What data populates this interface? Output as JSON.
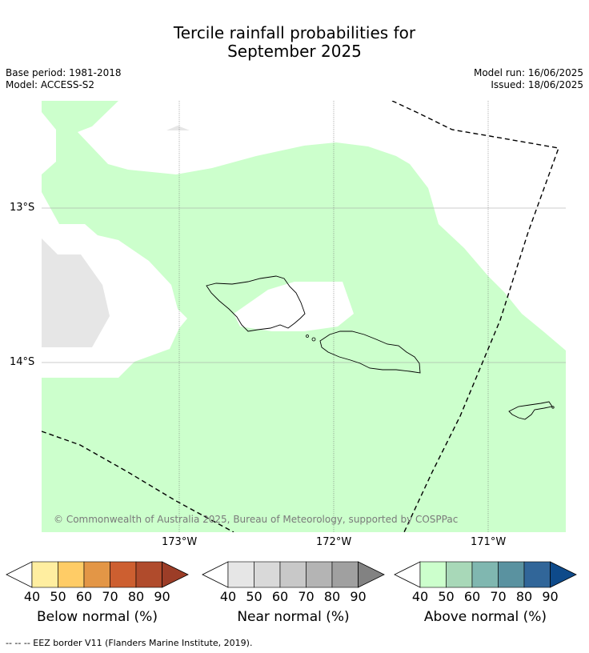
{
  "title_line1": "Tercile rainfall probabilities for",
  "title_line2": "September 2025",
  "base_period": "Base period: 1981-2018",
  "model": "Model: ACCESS-S2",
  "model_run": "Model run: 16/06/2025",
  "issued": "Issued: 18/06/2025",
  "lat_labels": [
    "13°S",
    "14°S"
  ],
  "lon_labels": [
    "173°W",
    "172°W",
    "171°W"
  ],
  "copyright": "© Commonwealth of Australia 2025, Bureau of Meteorology, supported by COSPPac",
  "colors": {
    "above_40_50": "#ccffcc",
    "near_normal_region": "#e6e6e6",
    "no_dominant": "#ffffff"
  },
  "legends": [
    {
      "title": "Below normal (%)",
      "ticks": [
        "40",
        "50",
        "60",
        "70",
        "80",
        "90"
      ],
      "colors": [
        "#ffeea0",
        "#ffcc66",
        "#e39646",
        "#cd5f30",
        "#b04b2c",
        "#9c3d27"
      ]
    },
    {
      "title": "Near normal (%)",
      "ticks": [
        "40",
        "50",
        "60",
        "70",
        "80",
        "90"
      ],
      "colors": [
        "#e6e6e6",
        "#d9d9d9",
        "#c8c8c8",
        "#b4b4b4",
        "#a0a0a0",
        "#828282"
      ]
    },
    {
      "title": "Above normal (%)",
      "ticks": [
        "40",
        "50",
        "60",
        "70",
        "80",
        "90"
      ],
      "colors": [
        "#ccffcc",
        "#a8d8b8",
        "#80b7b0",
        "#5a92a0",
        "#316699",
        "#0e4a8a"
      ]
    }
  ],
  "footnote": "--  --  -- EEZ border V11 (Flanders Marine Institute, 2019)."
}
